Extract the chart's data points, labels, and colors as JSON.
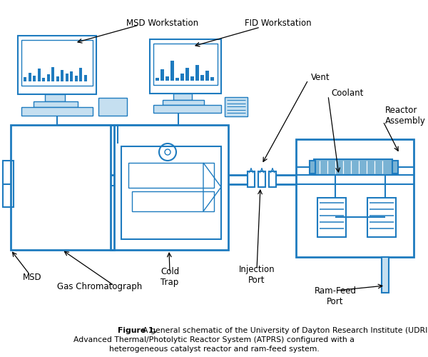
{
  "blue": "#1e7bbf",
  "light_blue_fill": "#c5dff0",
  "reactor_fill": "#7ab3d4",
  "bg": "#ffffff",
  "black": "#000000",
  "caption_bold": "Figure 1.",
  "caption1": "  A general schematic of the University of Dayton Research Institute (UDRI)",
  "caption2": "Advanced Thermal/Photolytic Reactor System (ATPRS) configured with a",
  "caption3": "heterogeneous catalyst reactor and ram-feed system.",
  "label_msd_ws": "MSD Workstation",
  "label_fid_ws": "FID Workstation",
  "label_vent": "Vent",
  "label_coolant": "Coolant",
  "label_reactor": "Reactor\nAssembly",
  "label_msd": "MSD",
  "label_gc": "Gas Chromatograph",
  "label_cold": "Cold\nTrap",
  "label_inj": "Injection\nPort",
  "label_ram": "Ram-Feed\nPort"
}
